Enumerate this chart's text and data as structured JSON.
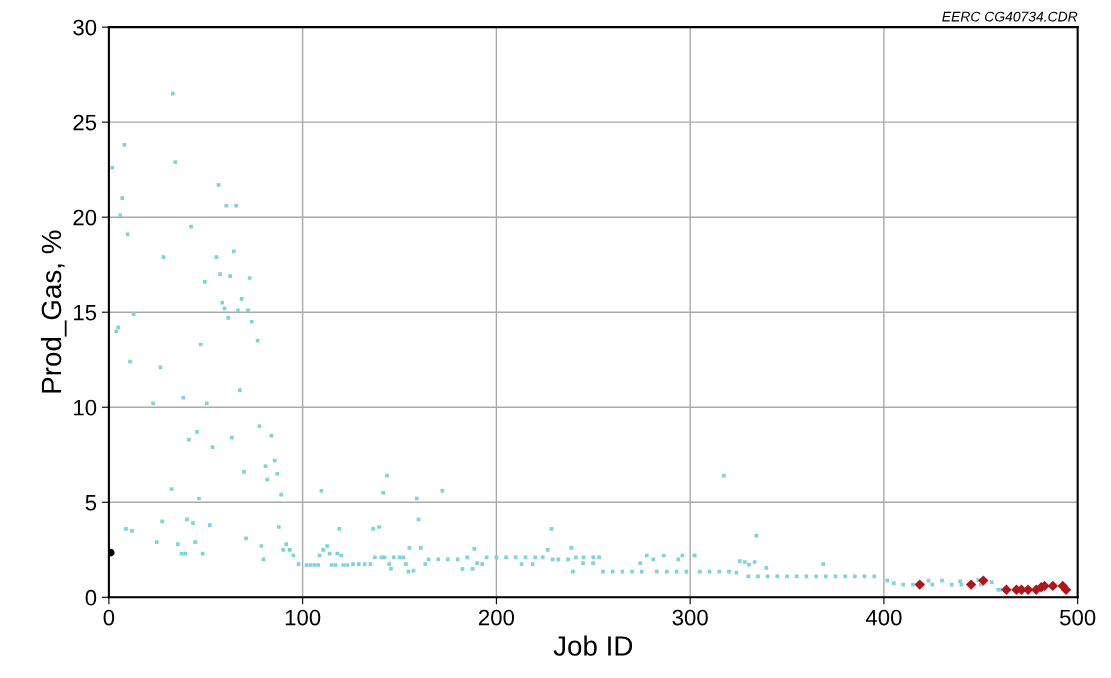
{
  "chart_data": {
    "type": "scatter",
    "xlabel": "Job ID",
    "ylabel": "Prod_Gas, %",
    "annotations": [
      "EERC CG40734.CDR"
    ],
    "xlim": [
      0,
      500
    ],
    "ylim": [
      0,
      30
    ],
    "xticks": [
      0,
      100,
      200,
      300,
      400,
      500
    ],
    "yticks": [
      0,
      5,
      10,
      15,
      20,
      25,
      30
    ],
    "grid": true,
    "series": [
      {
        "color": "#7fd3dc",
        "marker": "square",
        "x": [
          33.0,
          8.0,
          1.7,
          34.3,
          6.9,
          5.9,
          56.6,
          60.6,
          65.7,
          9.7,
          42.4,
          28.2,
          55.5,
          64.5,
          57.4,
          62.6,
          72.7,
          49.5,
          58.5,
          59.7,
          68.5,
          66.6,
          71.8,
          61.6,
          73.7,
          12.8,
          3.8,
          4.8,
          76.8,
          47.4,
          10.9,
          26.6,
          67.6,
          22.8,
          38.4,
          50.5,
          77.7,
          83.9,
          45.5,
          41.3,
          63.5,
          53.5,
          85.6,
          80.8,
          69.7,
          86.9,
          81.7,
          88.9,
          32.4,
          46.5,
          8.8,
          11.9,
          27.5,
          40.3,
          43.4,
          52.1,
          87.7,
          24.7,
          35.6,
          44.5,
          70.8,
          37.5,
          39.4,
          48.4,
          78.7,
          79.8,
          90.0,
          91.5,
          93.4,
          95.2,
          97.9,
          102,
          104,
          106,
          108,
          108.7,
          110.6,
          112.7,
          113.9,
          115,
          117,
          117.9,
          119.9,
          121,
          123,
          126,
          129,
          132,
          135,
          137.3,
          140.7,
          142.3,
          144.7,
          145.6,
          147,
          150,
          152,
          153.3,
          154.6,
          155.1,
          157.2,
          161,
          163.3,
          165,
          170,
          175,
          180,
          182.5,
          184.9,
          187.7,
          188.6,
          190,
          192.7,
          195,
          200,
          205,
          210,
          213,
          215,
          218.7,
          220,
          223.9,
          226.5,
          229,
          232,
          237,
          238.6,
          239.5,
          241,
          244.7,
          245,
          249.9,
          250,
          253,
          255,
          260,
          265,
          270,
          274.2,
          275,
          277.6,
          281,
          282.8,
          286.3,
          288,
          293,
          293.9,
          296,
          298,
          302.2,
          302.3,
          305,
          310,
          315,
          320,
          323.9,
          325.6,
          328.2,
          330.3,
          333.3,
          334.2,
          339.3,
          330,
          335,
          340,
          345,
          350,
          355,
          360,
          365,
          368.7,
          370,
          375,
          380,
          385,
          390,
          395,
          401.7,
          405.1,
          410,
          415,
          420,
          423,
          425,
          430,
          435,
          439.3,
          440,
          448.7,
          450,
          455.6,
          459,
          460,
          109.7,
          141.6,
          143.5,
          158.9,
          172.1,
          159.8,
          228.4,
          118.9,
          136.4,
          139.5,
          317.4
        ],
        "values": [
          26.5,
          23.8,
          22.6,
          22.9,
          21.0,
          20.1,
          21.7,
          20.6,
          20.6,
          19.1,
          19.5,
          17.9,
          17.9,
          18.2,
          17.0,
          16.9,
          16.8,
          16.6,
          15.5,
          15.2,
          15.7,
          15.1,
          15.1,
          14.7,
          14.5,
          14.9,
          14.0,
          14.2,
          13.5,
          13.3,
          12.4,
          12.1,
          10.9,
          10.2,
          10.5,
          10.2,
          9.0,
          8.5,
          8.7,
          8.3,
          8.4,
          7.9,
          7.2,
          6.9,
          6.6,
          6.5,
          6.2,
          5.4,
          5.7,
          5.2,
          3.6,
          3.5,
          4.0,
          4.1,
          3.9,
          3.8,
          3.7,
          2.9,
          2.8,
          2.9,
          3.1,
          2.3,
          2.3,
          2.3,
          2.7,
          2.0,
          2.5,
          2.8,
          2.5,
          2.2,
          1.75,
          1.7,
          1.7,
          1.7,
          1.7,
          2.2,
          2.5,
          2.7,
          2.3,
          1.7,
          1.7,
          2.3,
          2.2,
          1.7,
          1.7,
          1.75,
          1.75,
          1.75,
          1.75,
          2.1,
          2.1,
          2.1,
          1.75,
          1.5,
          2.1,
          2.1,
          2.1,
          1.75,
          1.35,
          2.6,
          1.4,
          2.6,
          1.75,
          2.0,
          2.0,
          2.0,
          2.0,
          1.5,
          2.1,
          1.5,
          2.55,
          1.8,
          1.75,
          2.1,
          2.1,
          2.1,
          2.1,
          1.75,
          2.1,
          1.75,
          2.1,
          2.1,
          2.5,
          2.0,
          2.0,
          2.0,
          2.6,
          1.35,
          2.1,
          1.8,
          2.1,
          1.8,
          2.1,
          2.1,
          1.35,
          1.35,
          1.35,
          1.35,
          1.8,
          1.35,
          2.2,
          2.0,
          1.35,
          2.2,
          1.35,
          1.35,
          2.0,
          2.2,
          1.35,
          2.2,
          2.2,
          1.35,
          1.35,
          1.35,
          1.35,
          1.3,
          1.9,
          1.86,
          1.72,
          1.86,
          3.25,
          1.55,
          1.1,
          1.1,
          1.1,
          1.1,
          1.1,
          1.1,
          1.1,
          1.1,
          1.75,
          1.1,
          1.1,
          1.1,
          1.1,
          1.1,
          1.1,
          0.88,
          0.75,
          0.67,
          0.67,
          0.67,
          0.88,
          0.67,
          0.88,
          0.67,
          0.84,
          0.67,
          0.9,
          0.67,
          0.8,
          0.4,
          0.4,
          5.6,
          5.5,
          6.4,
          5.2,
          5.6,
          4.1,
          3.6,
          3.6,
          3.6,
          3.7,
          6.4
        ]
      },
      {
        "color": "#000000",
        "marker": "circle",
        "x": [
          1
        ],
        "values": [
          2.35
        ]
      },
      {
        "color": "#b0151a",
        "marker": "diamond",
        "x": [
          418.5,
          445,
          451.3,
          463.2,
          468.4,
          471,
          474.4,
          478.6,
          481.2,
          482.9,
          487.2,
          492.3,
          494
        ],
        "values": [
          0.67,
          0.67,
          0.88,
          0.4,
          0.4,
          0.4,
          0.4,
          0.4,
          0.53,
          0.6,
          0.6,
          0.6,
          0.4
        ]
      }
    ]
  }
}
